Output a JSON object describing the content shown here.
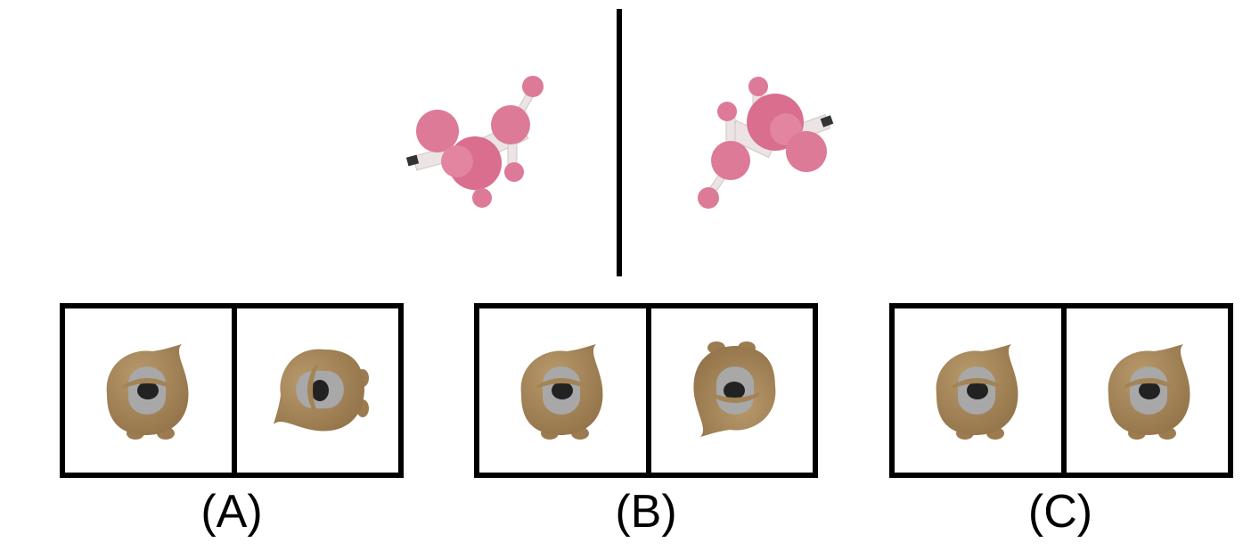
{
  "options": [
    {
      "label": "(A)"
    },
    {
      "label": "(B)"
    },
    {
      "label": "(C)"
    }
  ],
  "colors": {
    "molecule_pink": "#dd7a98",
    "molecule_bond": "#ece4e4",
    "creature_body": "#a38456",
    "frame": "#000000"
  }
}
